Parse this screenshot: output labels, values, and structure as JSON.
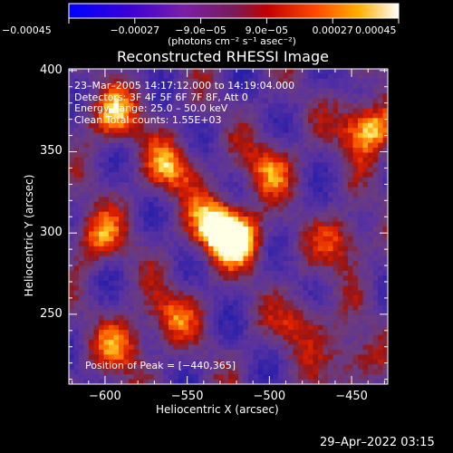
{
  "chart_data": {
    "type": "heatmap",
    "title": "Reconstructed RHESSI Image",
    "xlabel": "Heliocentric X (arcsec)",
    "ylabel": "Heliocentric Y (arcsec)",
    "xlim": [
      -622,
      -428
    ],
    "ylim": [
      207,
      401
    ],
    "x_ticks": [
      -600,
      -550,
      -500,
      -450
    ],
    "y_ticks": [
      250,
      300,
      350,
      400
    ],
    "x_tick_labels": [
      "−600",
      "−550",
      "−500",
      "−450"
    ],
    "y_tick_labels": [
      "250",
      "300",
      "350",
      "400"
    ],
    "annotations": [
      "23–Mar–2005 14:17:12.000 to 14:19:04.000",
      "Detectors: 3F 4F 5F 6F 7F 8F, Att 0",
      "Energy Range: 25.0 – 50.0 keV",
      "Clean     Total counts: 1.55E+03"
    ],
    "peak_label": "Position of Peak = [−440,365]",
    "peak_position": [
      -440,
      365
    ],
    "colorbar": {
      "min": -0.00045,
      "max": 0.00045,
      "tick_values": [
        -0.00045,
        -0.00027,
        -9e-05,
        9e-05,
        0.00027,
        0.00045
      ],
      "tick_labels": [
        "−0.00045",
        "−0.00027",
        "−9.0e−05",
        "9.0e−05",
        "0.00027",
        "0.00045"
      ],
      "unit_label": "(photons cm⁻² s⁻¹ asec⁻²)"
    },
    "bright_regions": [
      {
        "x": -440,
        "y": 365,
        "level": 1.0
      },
      {
        "x": -532,
        "y": 305,
        "level": 0.95
      },
      {
        "x": -520,
        "y": 296,
        "level": 0.85
      },
      {
        "x": -560,
        "y": 340,
        "level": 0.7
      },
      {
        "x": -595,
        "y": 372,
        "level": 0.75
      },
      {
        "x": -605,
        "y": 298,
        "level": 0.65
      },
      {
        "x": -500,
        "y": 340,
        "level": 0.6
      },
      {
        "x": -455,
        "y": 295,
        "level": 0.55
      },
      {
        "x": -560,
        "y": 250,
        "level": 0.55
      },
      {
        "x": -590,
        "y": 230,
        "level": 0.6
      },
      {
        "x": -480,
        "y": 245,
        "level": 0.5
      },
      {
        "x": -450,
        "y": 222,
        "level": 0.5
      }
    ]
  },
  "footer": {
    "date": "29–Apr–2022 03:15"
  }
}
